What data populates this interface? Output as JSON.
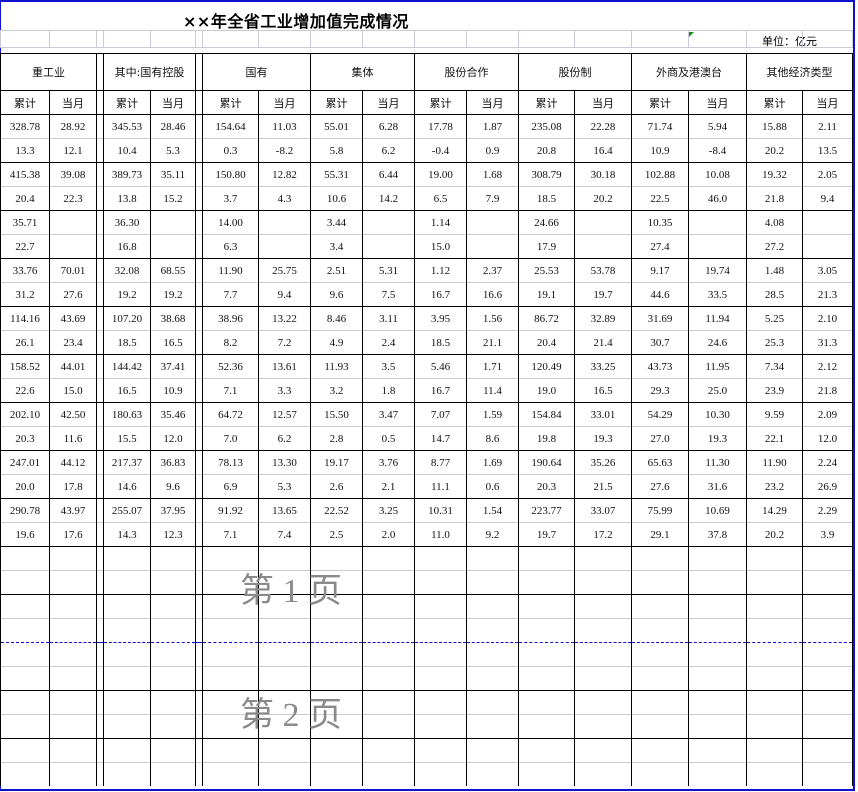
{
  "title": "××年全省工业增加值完成情况",
  "unit": "单位：亿元",
  "watermarks": [
    "第 1 页",
    "第 2 页"
  ],
  "groups": [
    "重工业",
    "其中:国有控股",
    "国有",
    "集体",
    "股份合作",
    "股份制",
    "外商及港澳台",
    "其他经济类型"
  ],
  "sub_labels": [
    "累计",
    "当月"
  ],
  "colors": {
    "page_border": "#1010d0",
    "gridline": "#c8ccd8"
  },
  "rows": [
    [
      "328.78",
      "28.92",
      "345.53",
      "28.46",
      "154.64",
      "11.03",
      "55.01",
      "6.28",
      "17.78",
      "1.87",
      "235.08",
      "22.28",
      "71.74",
      "5.94",
      "15.88",
      "2.11"
    ],
    [
      "13.3",
      "12.1",
      "10.4",
      "5.3",
      "0.3",
      "-8.2",
      "5.8",
      "6.2",
      "-0.4",
      "0.9",
      "20.8",
      "16.4",
      "10.9",
      "-8.4",
      "20.2",
      "13.5"
    ],
    [
      "415.38",
      "39.08",
      "389.73",
      "35.11",
      "150.80",
      "12.82",
      "55.31",
      "6.44",
      "19.00",
      "1.68",
      "308.79",
      "30.18",
      "102.88",
      "10.08",
      "19.32",
      "2.05"
    ],
    [
      "20.4",
      "22.3",
      "13.8",
      "15.2",
      "3.7",
      "4.3",
      "10.6",
      "14.2",
      "6.5",
      "7.9",
      "18.5",
      "20.2",
      "22.5",
      "46.0",
      "21.8",
      "9.4"
    ],
    [
      "35.71",
      "",
      "36.30",
      "",
      "14.00",
      "",
      "3.44",
      "",
      "1.14",
      "",
      "24.66",
      "",
      "10.35",
      "",
      "4.08",
      ""
    ],
    [
      "22.7",
      "",
      "16.8",
      "",
      "6.3",
      "",
      "3.4",
      "",
      "15.0",
      "",
      "17.9",
      "",
      "27.4",
      "",
      "27.2",
      ""
    ],
    [
      "33.76",
      "70.01",
      "32.08",
      "68.55",
      "11.90",
      "25.75",
      "2.51",
      "5.31",
      "1.12",
      "2.37",
      "25.53",
      "53.78",
      "9.17",
      "19.74",
      "1.48",
      "3.05"
    ],
    [
      "31.2",
      "27.6",
      "19.2",
      "19.2",
      "7.7",
      "9.4",
      "9.6",
      "7.5",
      "16.7",
      "16.6",
      "19.1",
      "19.7",
      "44.6",
      "33.5",
      "28.5",
      "21.3"
    ],
    [
      "114.16",
      "43.69",
      "107.20",
      "38.68",
      "38.96",
      "13.22",
      "8.46",
      "3.11",
      "3.95",
      "1.56",
      "86.72",
      "32.89",
      "31.69",
      "11.94",
      "5.25",
      "2.10"
    ],
    [
      "26.1",
      "23.4",
      "18.5",
      "16.5",
      "8.2",
      "7.2",
      "4.9",
      "2.4",
      "18.5",
      "21.1",
      "20.4",
      "21.4",
      "30.7",
      "24.6",
      "25.3",
      "31.3"
    ],
    [
      "158.52",
      "44.01",
      "144.42",
      "37.41",
      "52.36",
      "13.61",
      "11.93",
      "3.5",
      "5.46",
      "1.71",
      "120.49",
      "33.25",
      "43.73",
      "11.95",
      "7.34",
      "2.12"
    ],
    [
      "22.6",
      "15.0",
      "16.5",
      "10.9",
      "7.1",
      "3.3",
      "3.2",
      "1.8",
      "16.7",
      "11.4",
      "19.0",
      "16.5",
      "29.3",
      "25.0",
      "23.9",
      "21.8"
    ],
    [
      "202.10",
      "42.50",
      "180.63",
      "35.46",
      "64.72",
      "12.57",
      "15.50",
      "3.47",
      "7.07",
      "1.59",
      "154.84",
      "33.01",
      "54.29",
      "10.30",
      "9.59",
      "2.09"
    ],
    [
      "20.3",
      "11.6",
      "15.5",
      "12.0",
      "7.0",
      "6.2",
      "2.8",
      "0.5",
      "14.7",
      "8.6",
      "19.8",
      "19.3",
      "27.0",
      "19.3",
      "22.1",
      "12.0"
    ],
    [
      "247.01",
      "44.12",
      "217.37",
      "36.83",
      "78.13",
      "13.30",
      "19.17",
      "3.76",
      "8.77",
      "1.69",
      "190.64",
      "35.26",
      "65.63",
      "11.30",
      "11.90",
      "2.24"
    ],
    [
      "20.0",
      "17.8",
      "14.6",
      "9.6",
      "6.9",
      "5.3",
      "2.6",
      "2.1",
      "11.1",
      "0.6",
      "20.3",
      "21.5",
      "27.6",
      "31.6",
      "23.2",
      "26.9"
    ],
    [
      "290.78",
      "43.97",
      "255.07",
      "37.95",
      "91.92",
      "13.65",
      "22.52",
      "3.25",
      "10.31",
      "1.54",
      "223.77",
      "33.07",
      "75.99",
      "10.69",
      "14.29",
      "2.29"
    ],
    [
      "19.6",
      "17.6",
      "14.3",
      "12.3",
      "7.1",
      "7.4",
      "2.5",
      "2.0",
      "11.0",
      "9.2",
      "19.7",
      "17.2",
      "29.1",
      "37.8",
      "20.2",
      "3.9"
    ]
  ]
}
